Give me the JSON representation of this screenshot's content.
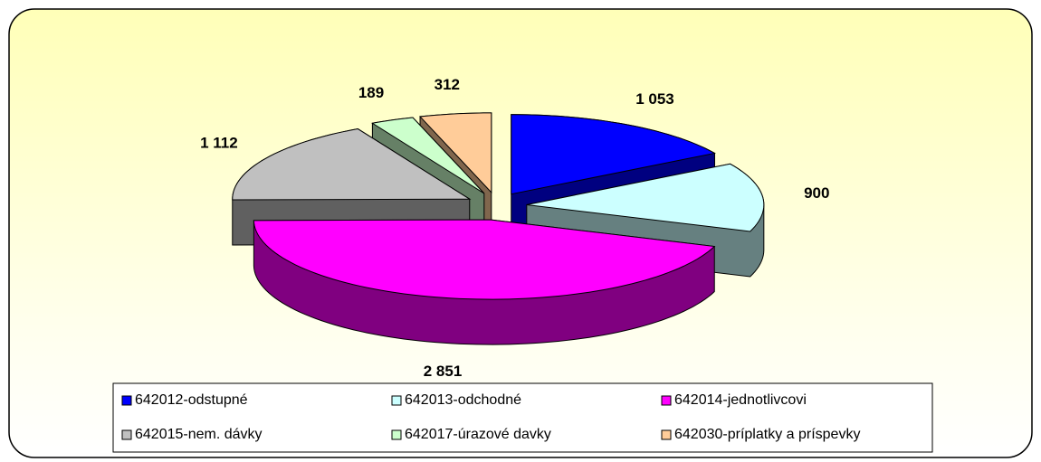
{
  "chart_data": {
    "type": "pie",
    "three_d": true,
    "categories": [
      "642012-odstupné",
      "642013-odchodné",
      "642014-jednotlivcovi",
      "642015-nem. dávky",
      "642017-úrazové davky",
      "642030-príplatky a príspevky"
    ],
    "values": [
      1053,
      900,
      2851,
      1112,
      189,
      312
    ],
    "value_labels": [
      "1 053",
      "900",
      "2 851",
      "1 112",
      "189",
      "312"
    ],
    "colors": [
      "#0000FF",
      "#CCFFFF",
      "#FF00FF",
      "#C0C0C0",
      "#CCFFCC",
      "#FFCC99"
    ],
    "legend": "bottom"
  }
}
